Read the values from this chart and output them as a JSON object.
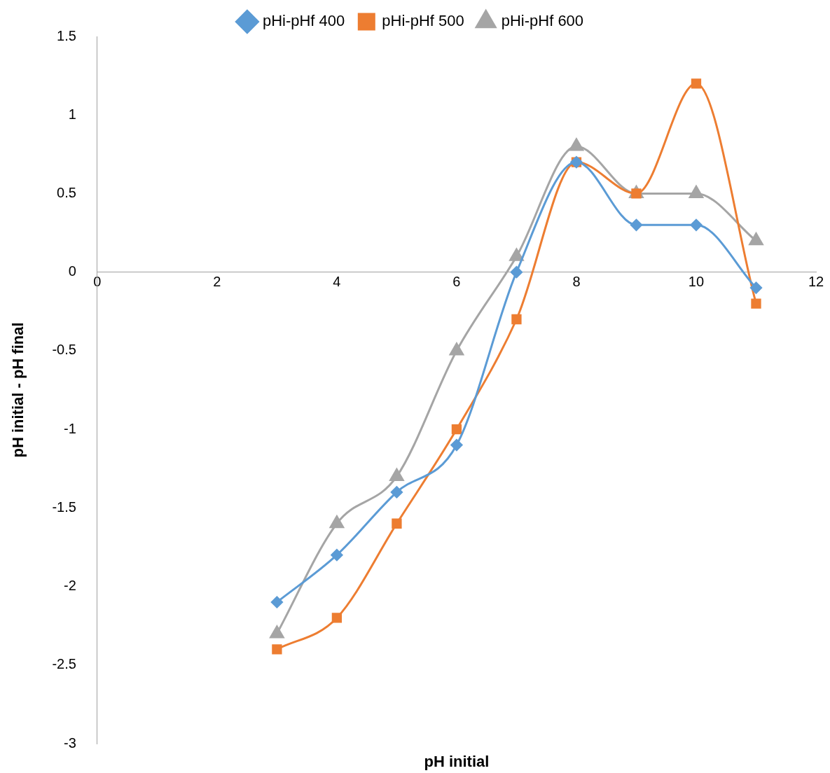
{
  "chart_data": {
    "type": "line",
    "xlabel": "pH initial",
    "ylabel": "pH initial - pH final",
    "x": [
      3,
      4,
      5,
      6,
      7,
      8,
      9,
      10,
      11
    ],
    "series": [
      {
        "name": "pHi-pHf 400",
        "color": "#5b9bd5",
        "marker": "diamond",
        "values": [
          -2.1,
          -1.8,
          -1.4,
          -1.1,
          0,
          0.7,
          0.3,
          0.3,
          -0.1
        ]
      },
      {
        "name": "pHi-pHf 500",
        "color": "#ed7d31",
        "marker": "square",
        "values": [
          -2.4,
          -2.2,
          -1.6,
          -1.0,
          -0.3,
          0.7,
          0.5,
          1.2,
          -0.2
        ]
      },
      {
        "name": "pHi-pHf 600",
        "color": "#a5a5a5",
        "marker": "triangle",
        "values": [
          -2.3,
          -1.6,
          -1.3,
          -0.5,
          0.1,
          0.8,
          0.5,
          0.5,
          0.2
        ]
      }
    ],
    "xlim": [
      0,
      12
    ],
    "xticks": [
      0,
      2,
      4,
      6,
      8,
      10,
      12
    ],
    "ylim": [
      -3,
      1.5
    ],
    "yticks": [
      -3,
      -2.5,
      -2,
      -1.5,
      -1,
      -0.5,
      0,
      0.5,
      1,
      1.5
    ],
    "grid": false,
    "legend": "top",
    "line_style": "solid"
  }
}
